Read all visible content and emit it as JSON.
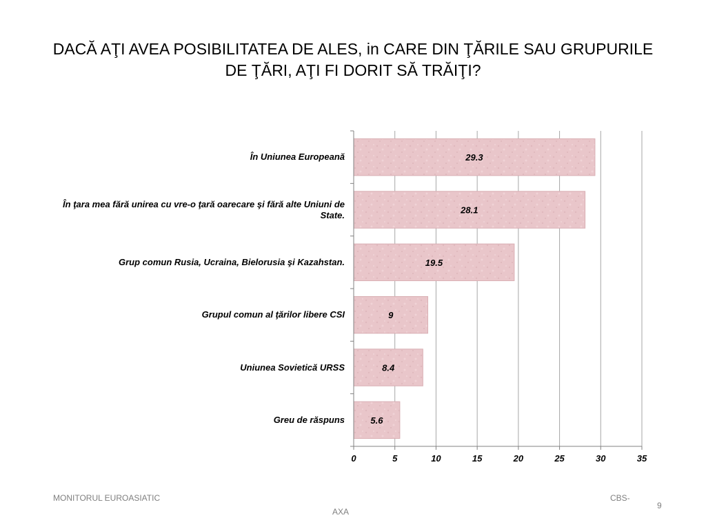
{
  "slide": {
    "title": "DACĂ AŢI AVEA POSIBILITATEA DE ALES, in CARE DIN ŢĂRILE SAU GRUPURILE DE ŢĂRI, AŢI FI DORIT SĂ TRĂIŢI?",
    "footer_left": "MONITORUL  EUROASIATIC",
    "footer_right_a": "CBS-",
    "footer_right_b": "AXA",
    "page_number": "9"
  },
  "chart_data": {
    "type": "bar",
    "orientation": "horizontal",
    "categories": [
      "În Uniunea Europeană",
      "În ţara mea fără unirea cu vre-o ţară oarecare şi fără  alte Uniuni de State.",
      "Grup comun Rusia, Ucraina, Bielorusia şi  Kazahstan.",
      "Grupul comun al ţărilor libere CSI",
      "Uniunea Sovietică URSS",
      "Greu de răspuns"
    ],
    "values": [
      29.3,
      28.1,
      19.5,
      9,
      8.4,
      5.6
    ],
    "value_labels": [
      "29.3",
      "28.1",
      "19.5",
      "9",
      "8.4",
      "5.6"
    ],
    "xlim": [
      0,
      35
    ],
    "x_ticks": [
      "0",
      "5",
      "10",
      "15",
      "20",
      "25",
      "30",
      "35"
    ],
    "grid": true,
    "bar_color": "#e8c4c8",
    "bar_border_color": "#d9aeb3",
    "grid_color": "#a6a6a6"
  }
}
